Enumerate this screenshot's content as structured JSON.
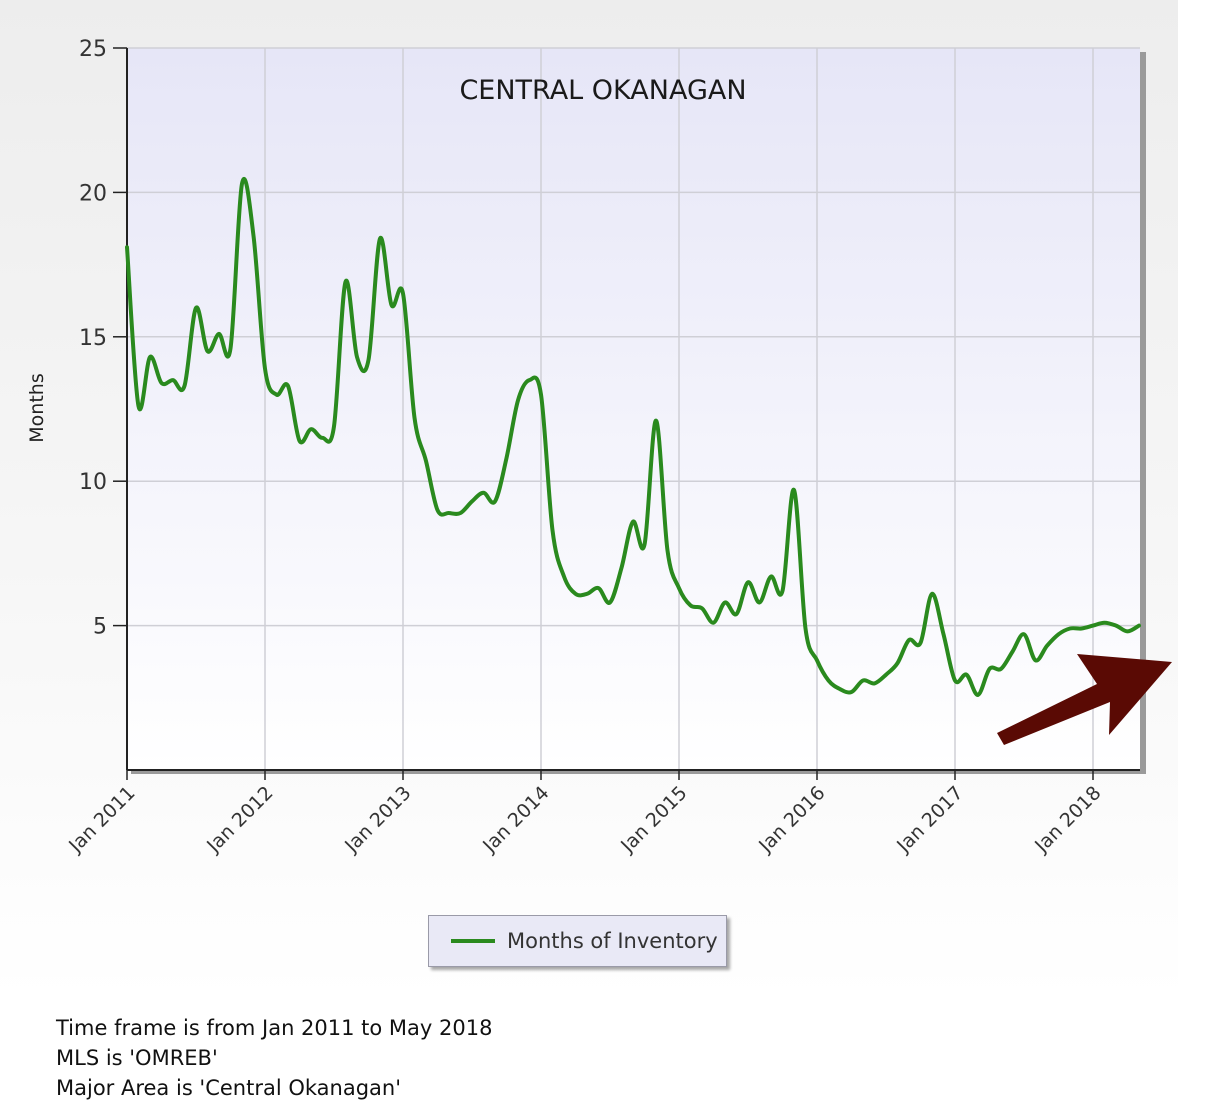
{
  "chart_data": {
    "type": "line",
    "title": "CENTRAL OKANAGAN",
    "ylabel": "Months",
    "xlabel": "",
    "ylim": [
      0,
      25
    ],
    "y_ticks": [
      5,
      10,
      15,
      20,
      25
    ],
    "x_tick_labels": [
      "Jan 2011",
      "Jan 2012",
      "Jan 2013",
      "Jan 2014",
      "Jan 2015",
      "Jan 2016",
      "Jan 2017",
      "Jan 2018"
    ],
    "x_range": [
      "Jan 2011",
      "May 2018"
    ],
    "grid": true,
    "legend_position": "bottom-center",
    "series": [
      {
        "name": "Months of Inventory",
        "color": "#2a8a1e",
        "x": [
          "2011-01",
          "2011-02",
          "2011-03",
          "2011-04",
          "2011-05",
          "2011-06",
          "2011-07",
          "2011-08",
          "2011-09",
          "2011-10",
          "2011-11",
          "2011-12",
          "2012-01",
          "2012-02",
          "2012-03",
          "2012-04",
          "2012-05",
          "2012-06",
          "2012-07",
          "2012-08",
          "2012-09",
          "2012-10",
          "2012-11",
          "2012-12",
          "2013-01",
          "2013-02",
          "2013-03",
          "2013-04",
          "2013-05",
          "2013-06",
          "2013-07",
          "2013-08",
          "2013-09",
          "2013-10",
          "2013-11",
          "2013-12",
          "2014-01",
          "2014-02",
          "2014-03",
          "2014-04",
          "2014-05",
          "2014-06",
          "2014-07",
          "2014-08",
          "2014-09",
          "2014-10",
          "2014-11",
          "2014-12",
          "2015-01",
          "2015-02",
          "2015-03",
          "2015-04",
          "2015-05",
          "2015-06",
          "2015-07",
          "2015-08",
          "2015-09",
          "2015-10",
          "2015-11",
          "2015-12",
          "2016-01",
          "2016-02",
          "2016-03",
          "2016-04",
          "2016-05",
          "2016-06",
          "2016-07",
          "2016-08",
          "2016-09",
          "2016-10",
          "2016-11",
          "2016-12",
          "2017-01",
          "2017-02",
          "2017-03",
          "2017-04",
          "2017-05",
          "2017-06",
          "2017-07",
          "2017-08",
          "2017-09",
          "2017-10",
          "2017-11",
          "2017-12",
          "2018-01",
          "2018-02",
          "2018-03",
          "2018-04",
          "2018-05"
        ],
        "values": [
          18.1,
          12.6,
          14.3,
          13.4,
          13.5,
          13.3,
          16.0,
          14.5,
          15.1,
          14.6,
          20.3,
          18.5,
          13.9,
          13.0,
          13.3,
          11.4,
          11.8,
          11.5,
          11.9,
          16.9,
          14.3,
          14.2,
          18.4,
          16.1,
          16.5,
          12.2,
          10.7,
          9.0,
          8.9,
          8.9,
          9.3,
          9.6,
          9.3,
          10.8,
          12.8,
          13.5,
          13.0,
          8.3,
          6.7,
          6.1,
          6.1,
          6.3,
          5.8,
          7.0,
          8.6,
          7.8,
          12.1,
          7.6,
          6.3,
          5.7,
          5.6,
          5.1,
          5.8,
          5.4,
          6.5,
          5.8,
          6.7,
          6.2,
          9.7,
          4.9,
          3.8,
          3.1,
          2.8,
          2.7,
          3.1,
          3.0,
          3.3,
          3.7,
          4.5,
          4.4,
          6.1,
          4.7,
          3.1,
          3.3,
          2.6,
          3.5,
          3.5,
          4.1,
          4.7,
          3.8,
          4.3,
          4.7,
          4.9,
          4.9,
          5.0,
          5.1,
          5.0,
          4.8,
          5.0
        ]
      }
    ]
  },
  "footer": {
    "line1": "Time frame is from Jan 2011 to May 2018",
    "line2": "MLS is 'OMREB'",
    "line3": "Major Area is 'Central Okanagan'"
  },
  "colors": {
    "line": "#2a8a1e",
    "arrow": "#5a0a04",
    "plot_top": "#e6e6f7",
    "plot_bottom": "#ffffff"
  }
}
